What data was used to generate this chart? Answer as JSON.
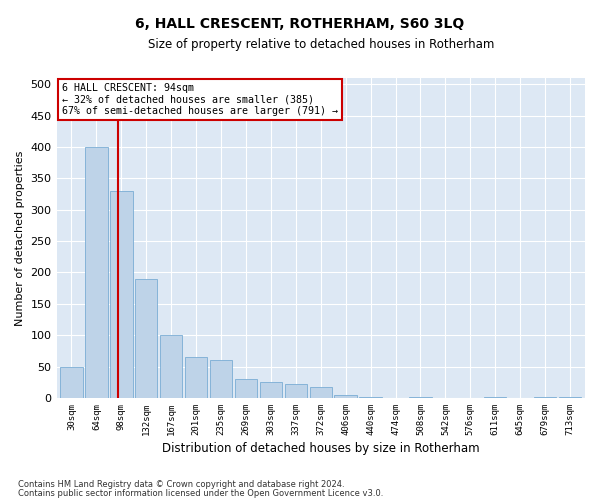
{
  "title": "6, HALL CRESCENT, ROTHERHAM, S60 3LQ",
  "subtitle": "Size of property relative to detached houses in Rotherham",
  "xlabel": "Distribution of detached houses by size in Rotherham",
  "ylabel": "Number of detached properties",
  "bar_color": "#bed3e8",
  "bar_edge_color": "#7aadd4",
  "background_color": "#dde8f4",
  "grid_color": "#ffffff",
  "categories": [
    "30sqm",
    "64sqm",
    "98sqm",
    "132sqm",
    "167sqm",
    "201sqm",
    "235sqm",
    "269sqm",
    "303sqm",
    "337sqm",
    "372sqm",
    "406sqm",
    "440sqm",
    "474sqm",
    "508sqm",
    "542sqm",
    "576sqm",
    "611sqm",
    "645sqm",
    "679sqm",
    "713sqm"
  ],
  "values": [
    50,
    400,
    330,
    190,
    100,
    65,
    60,
    30,
    25,
    22,
    18,
    5,
    1,
    0,
    1,
    0,
    0,
    1,
    0,
    1,
    1
  ],
  "ylim": [
    0,
    510
  ],
  "yticks": [
    0,
    50,
    100,
    150,
    200,
    250,
    300,
    350,
    400,
    450,
    500
  ],
  "red_line_x": 1.88,
  "red_line_color": "#cc0000",
  "annotation_title": "6 HALL CRESCENT: 94sqm",
  "annotation_line1": "← 32% of detached houses are smaller (385)",
  "annotation_line2": "67% of semi-detached houses are larger (791) →",
  "annotation_box_color": "#ffffff",
  "annotation_box_edge": "#cc0000",
  "footnote1": "Contains HM Land Registry data © Crown copyright and database right 2024.",
  "footnote2": "Contains public sector information licensed under the Open Government Licence v3.0."
}
